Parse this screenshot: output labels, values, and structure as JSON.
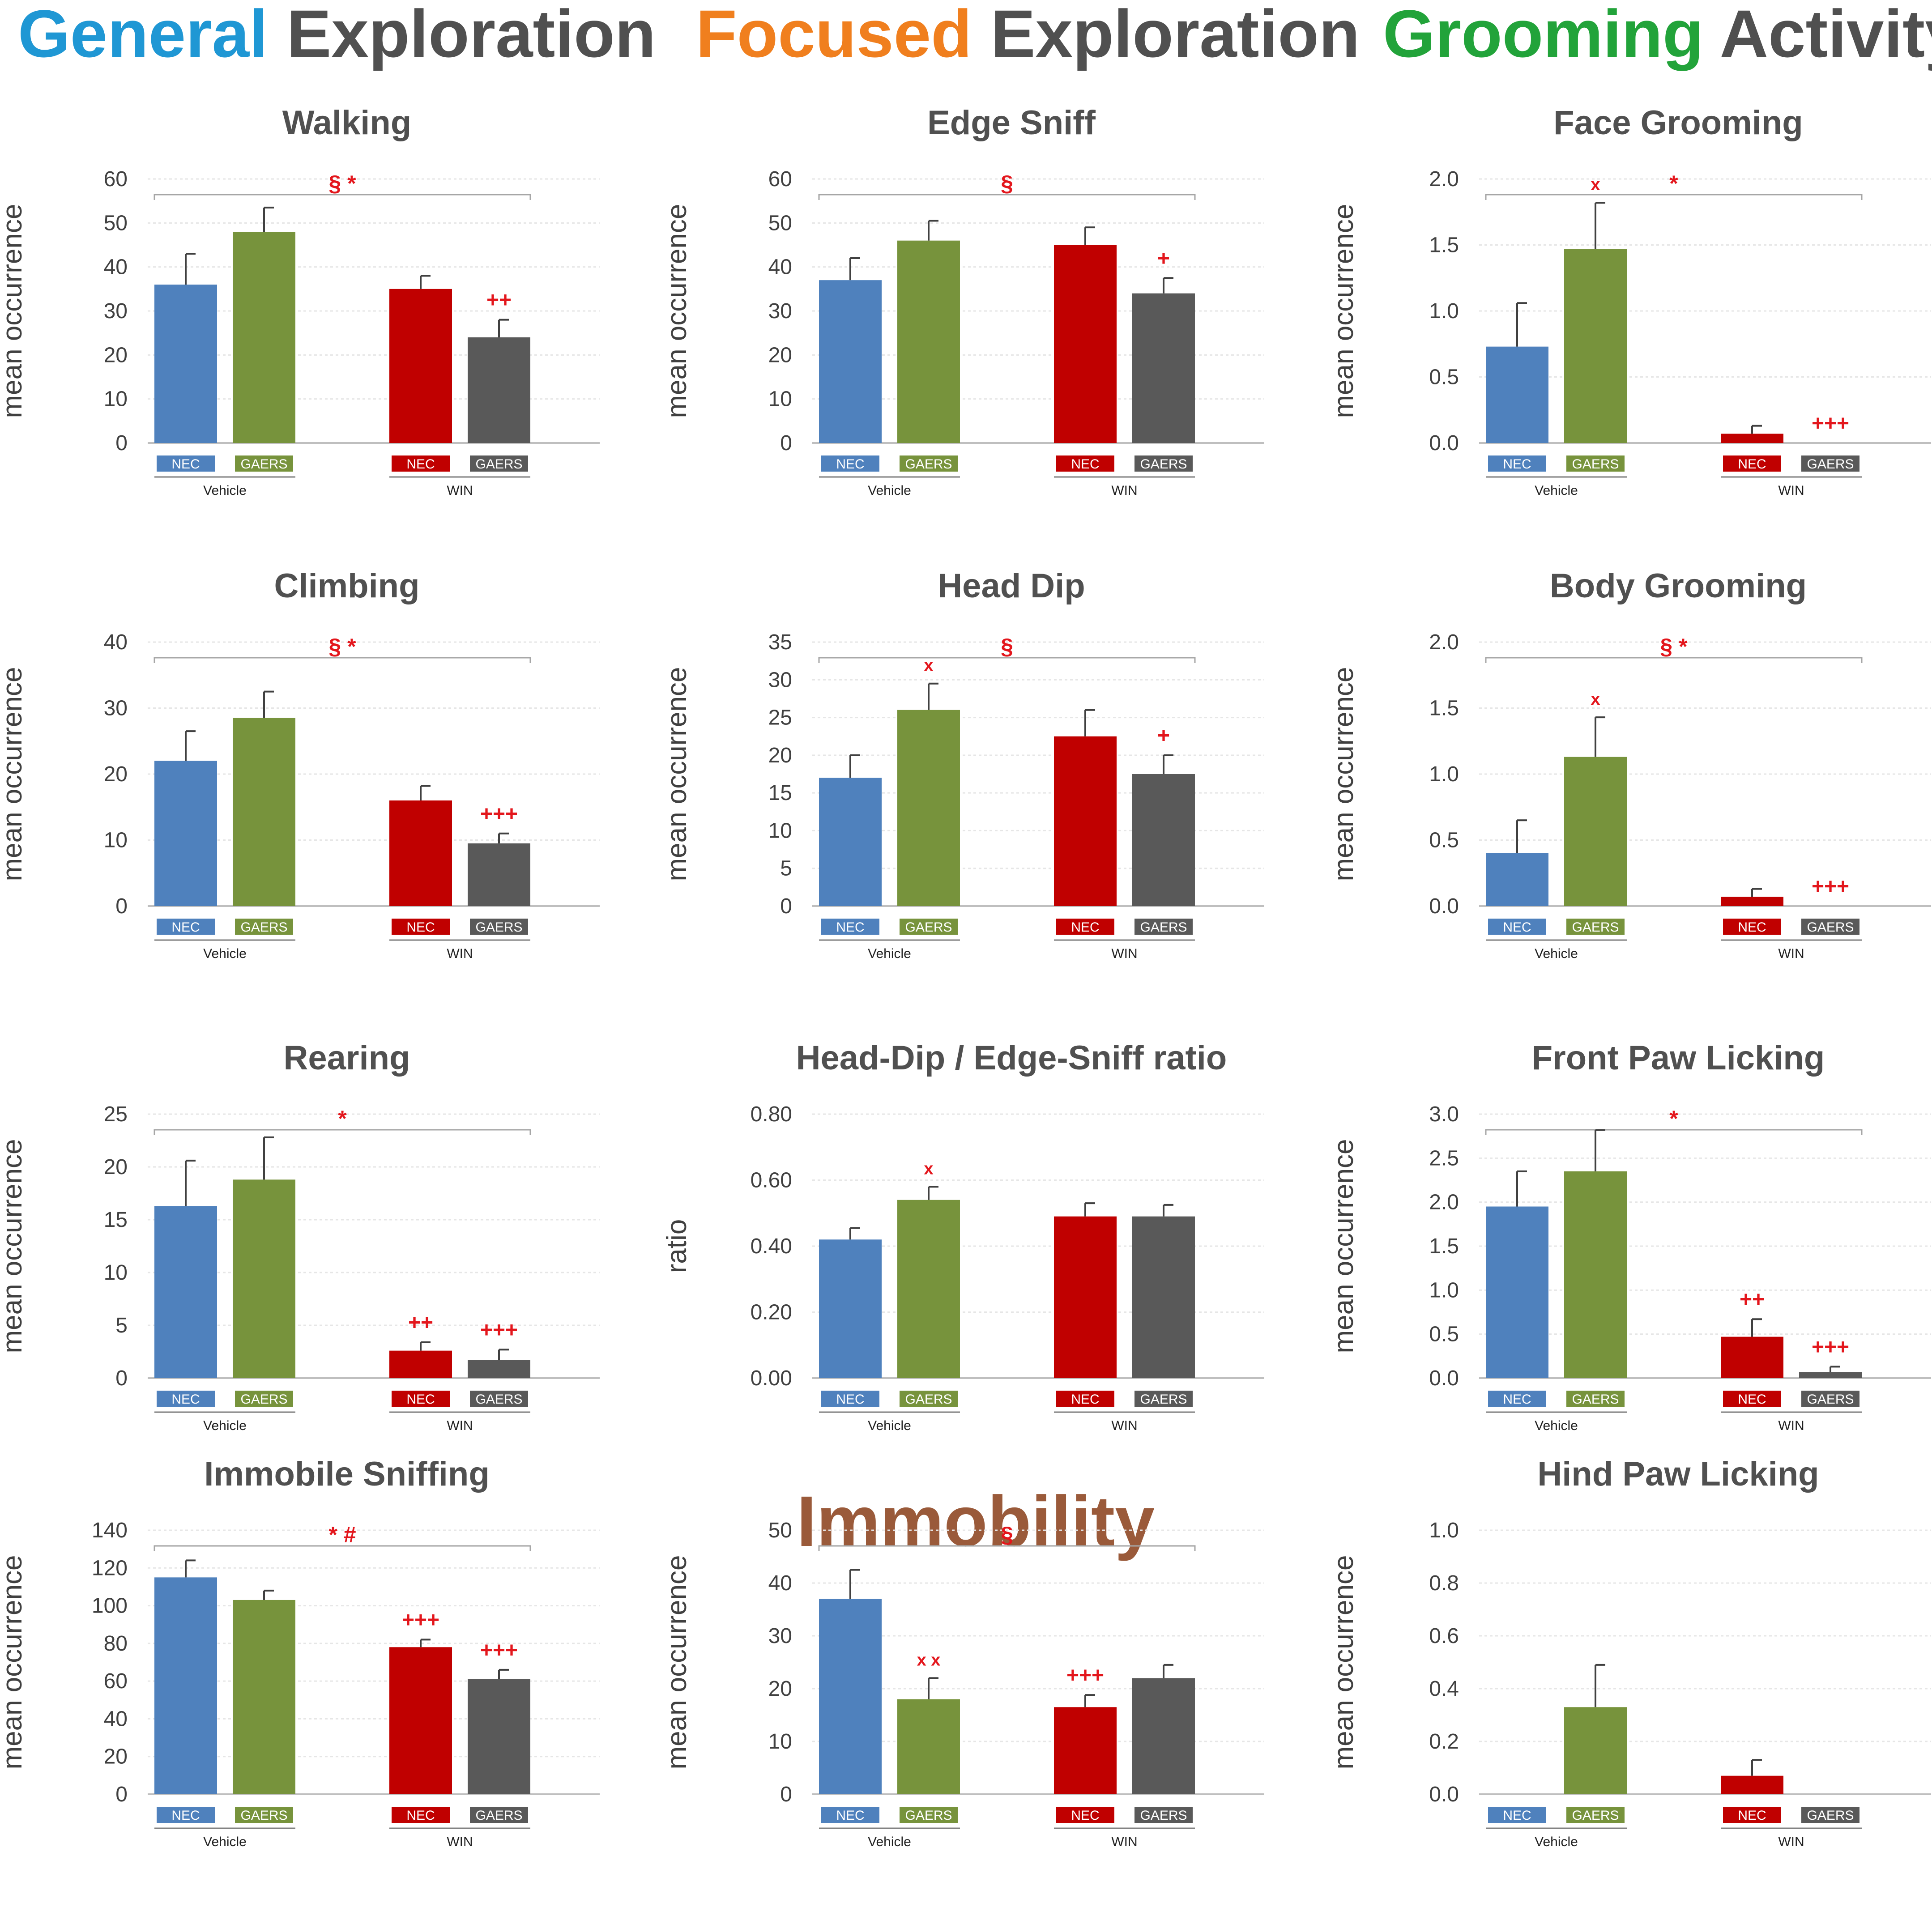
{
  "sections": {
    "general": {
      "highlight": "General",
      "rest": "Exploration",
      "color": "#1f97d4"
    },
    "focused": {
      "highlight": "Focused",
      "rest": "Exploration",
      "color": "#f07f1e"
    },
    "grooming": {
      "highlight": "Grooming",
      "rest": "Activity",
      "color": "#22a33a"
    },
    "immobility": {
      "title": "Immobility",
      "color": "#9a5a3a"
    }
  },
  "colors": {
    "nec_vehicle": "#4f81bd",
    "gaers_vehicle": "#77933c",
    "nec_win": "#c00000",
    "gaers_win": "#595959",
    "annotation": "#e3161c"
  },
  "legend": {
    "nec": "NEC",
    "gaers": "GAERS",
    "vehicle": "Vehicle",
    "win": "WIN"
  },
  "chart_data": [
    {
      "id": "walking",
      "type": "bar",
      "title": "Walking",
      "ylabel": "mean occurrence",
      "categories": [
        "NEC Vehicle",
        "GAERS Vehicle",
        "NEC WIN",
        "GAERS WIN"
      ],
      "values": [
        36,
        48,
        35,
        24
      ],
      "errors": [
        7,
        5.5,
        3,
        4
      ],
      "ylim": [
        0,
        60
      ],
      "yticks": [
        "0",
        "10",
        "20",
        "30",
        "40",
        "50",
        "60"
      ],
      "bar_annotations": [
        "",
        "",
        "",
        "++"
      ],
      "bracket_label": "§ *"
    },
    {
      "id": "edge-sniff",
      "type": "bar",
      "title": "Edge Sniff",
      "ylabel": "mean occurrence",
      "categories": [
        "NEC Vehicle",
        "GAERS Vehicle",
        "NEC WIN",
        "GAERS WIN"
      ],
      "values": [
        37,
        46,
        45,
        34
      ],
      "errors": [
        5,
        4.5,
        4,
        3.5
      ],
      "ylim": [
        0,
        60
      ],
      "yticks": [
        "0",
        "10",
        "20",
        "30",
        "40",
        "50",
        "60"
      ],
      "bar_annotations": [
        "",
        "",
        "",
        "+"
      ],
      "bracket_label": "§"
    },
    {
      "id": "face-grooming",
      "type": "bar",
      "title": "Face Grooming",
      "ylabel": "mean occurrence",
      "categories": [
        "NEC Vehicle",
        "GAERS Vehicle",
        "NEC WIN",
        "GAERS WIN"
      ],
      "values": [
        0.73,
        1.47,
        0.07,
        0.0
      ],
      "errors": [
        0.33,
        0.35,
        0.06,
        0
      ],
      "ylim": [
        0,
        2.0
      ],
      "yticks": [
        "0.0",
        "0.5",
        "1.0",
        "1.5",
        "2.0"
      ],
      "bar_annotations": [
        "",
        "x",
        "",
        "+++"
      ],
      "bracket_label": "*"
    },
    {
      "id": "climbing",
      "type": "bar",
      "title": "Climbing",
      "ylabel": "mean occurrence",
      "categories": [
        "NEC Vehicle",
        "GAERS Vehicle",
        "NEC WIN",
        "GAERS WIN"
      ],
      "values": [
        22,
        28.5,
        16,
        9.5
      ],
      "errors": [
        4.5,
        4,
        2.2,
        1.5
      ],
      "ylim": [
        0,
        40
      ],
      "yticks": [
        "0",
        "10",
        "20",
        "30",
        "40"
      ],
      "bar_annotations": [
        "",
        "",
        "",
        "+++"
      ],
      "bracket_label": "§ *"
    },
    {
      "id": "head-dip",
      "type": "bar",
      "title": "Head Dip",
      "ylabel": "mean occurrence",
      "categories": [
        "NEC Vehicle",
        "GAERS Vehicle",
        "NEC WIN",
        "GAERS WIN"
      ],
      "values": [
        17,
        26,
        22.5,
        17.5
      ],
      "errors": [
        3,
        3.5,
        3.5,
        2.5
      ],
      "ylim": [
        0,
        35
      ],
      "yticks": [
        "0",
        "5",
        "10",
        "15",
        "20",
        "25",
        "30",
        "35"
      ],
      "bar_annotations": [
        "",
        "x",
        "",
        "+"
      ],
      "bracket_label": "§"
    },
    {
      "id": "body-grooming",
      "type": "bar",
      "title": "Body Grooming",
      "ylabel": "mean occurrence",
      "categories": [
        "NEC Vehicle",
        "GAERS Vehicle",
        "NEC WIN",
        "GAERS WIN"
      ],
      "values": [
        0.4,
        1.13,
        0.07,
        0.0
      ],
      "errors": [
        0.25,
        0.3,
        0.06,
        0
      ],
      "ylim": [
        0,
        2.0
      ],
      "yticks": [
        "0.0",
        "0.5",
        "1.0",
        "1.5",
        "2.0"
      ],
      "bar_annotations": [
        "",
        "x",
        "",
        "+++"
      ],
      "bracket_label": "§ *"
    },
    {
      "id": "rearing",
      "type": "bar",
      "title": "Rearing",
      "ylabel": "mean occurrence",
      "categories": [
        "NEC Vehicle",
        "GAERS Vehicle",
        "NEC WIN",
        "GAERS WIN"
      ],
      "values": [
        16.3,
        18.8,
        2.6,
        1.7
      ],
      "errors": [
        4.3,
        4.0,
        0.8,
        1.0
      ],
      "ylim": [
        0,
        25
      ],
      "yticks": [
        "0",
        "5",
        "10",
        "15",
        "20",
        "25"
      ],
      "bar_annotations": [
        "",
        "",
        "++",
        "+++"
      ],
      "bracket_label": "*"
    },
    {
      "id": "hd-es-ratio",
      "type": "bar",
      "title": "Head-Dip / Edge-Sniff ratio",
      "ylabel": "ratio",
      "categories": [
        "NEC Vehicle",
        "GAERS Vehicle",
        "NEC WIN",
        "GAERS WIN"
      ],
      "values": [
        0.42,
        0.54,
        0.49,
        0.49
      ],
      "errors": [
        0.035,
        0.04,
        0.04,
        0.035
      ],
      "ylim": [
        0,
        0.8
      ],
      "yticks": [
        "0.00",
        "0.20",
        "0.40",
        "0.60",
        "0.80"
      ],
      "bar_annotations": [
        "",
        "x",
        "",
        ""
      ],
      "bracket_label": ""
    },
    {
      "id": "front-paw-licking",
      "type": "bar",
      "title": "Front Paw Licking",
      "ylabel": "mean occurrence",
      "categories": [
        "NEC Vehicle",
        "GAERS Vehicle",
        "NEC WIN",
        "GAERS WIN"
      ],
      "values": [
        1.95,
        2.35,
        0.47,
        0.07
      ],
      "errors": [
        0.4,
        0.47,
        0.2,
        0.06
      ],
      "ylim": [
        0,
        3.0
      ],
      "yticks": [
        "0.0",
        "0.5",
        "1.0",
        "1.5",
        "2.0",
        "2.5",
        "3.0"
      ],
      "bar_annotations": [
        "",
        "",
        "++",
        "+++"
      ],
      "bracket_label": "*"
    },
    {
      "id": "immobile-sniffing",
      "type": "bar",
      "title": "Immobile Sniffing",
      "ylabel": "mean occurrence",
      "categories": [
        "NEC Vehicle",
        "GAERS Vehicle",
        "NEC WIN",
        "GAERS WIN"
      ],
      "values": [
        115,
        103,
        78,
        61
      ],
      "errors": [
        9,
        5,
        4,
        5
      ],
      "ylim": [
        0,
        140
      ],
      "yticks": [
        "0",
        "20",
        "40",
        "60",
        "80",
        "100",
        "120",
        "140"
      ],
      "bar_annotations": [
        "",
        "",
        "+++",
        "+++"
      ],
      "bracket_label": "* #"
    },
    {
      "id": "immobility",
      "type": "bar",
      "title": "",
      "ylabel": "mean occurrence",
      "categories": [
        "NEC Vehicle",
        "GAERS Vehicle",
        "NEC WIN",
        "GAERS WIN"
      ],
      "values": [
        37,
        18,
        16.5,
        22
      ],
      "errors": [
        5.5,
        4,
        2.3,
        2.5
      ],
      "ylim": [
        0,
        50
      ],
      "yticks": [
        "0",
        "10",
        "20",
        "30",
        "40",
        "50"
      ],
      "bar_annotations": [
        "",
        "x x",
        "+++",
        ""
      ],
      "bracket_label": "§"
    },
    {
      "id": "hind-paw-licking",
      "type": "bar",
      "title": "Hind Paw Licking",
      "ylabel": "mean occurrence",
      "categories": [
        "NEC Vehicle",
        "GAERS Vehicle",
        "NEC WIN",
        "GAERS WIN"
      ],
      "values": [
        0.0,
        0.33,
        0.07,
        0.0
      ],
      "errors": [
        0,
        0.16,
        0.06,
        0
      ],
      "ylim": [
        0,
        1.0
      ],
      "yticks": [
        "0.0",
        "0.2",
        "0.4",
        "0.6",
        "0.8",
        "1.0"
      ],
      "bar_annotations": [
        "",
        "",
        "",
        ""
      ],
      "bracket_label": ""
    }
  ]
}
